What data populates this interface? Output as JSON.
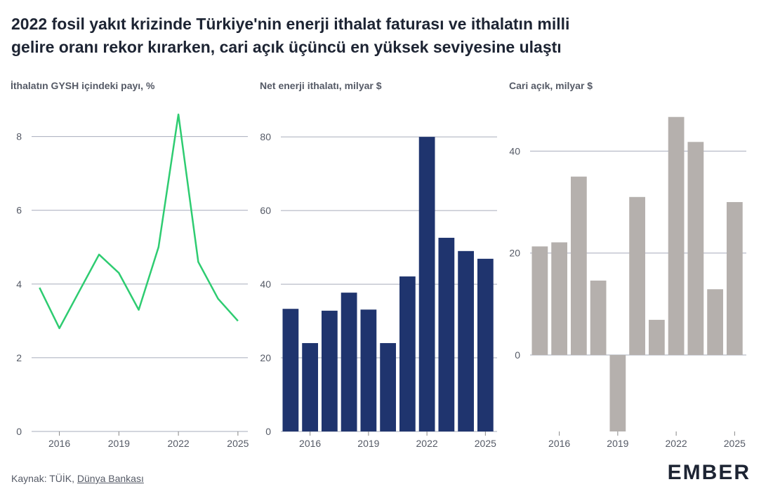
{
  "title": [
    "2022 fosil yakıt krizinde Türkiye'nin enerji ithalat faturası ve ithalatın milli",
    "gelire oranı rekor kırarken, cari açık üçüncü en yüksek seviyesine ulaştı"
  ],
  "source": {
    "prefix": "Kaynak: TÜİK,",
    "link": "Dünya Bankası"
  },
  "logo": "EMBER",
  "chart_data": [
    {
      "type": "line",
      "title": "İthalatın GYSH içindeki payı, %",
      "color": "#2ecc71",
      "x": [
        2015,
        2016,
        2017,
        2018,
        2019,
        2020,
        2021,
        2022,
        2023,
        2024,
        2025
      ],
      "values": [
        3.9,
        2.8,
        3.8,
        4.8,
        4.3,
        3.3,
        5.0,
        8.6,
        4.6,
        3.6,
        3.0
      ],
      "xlim": [
        2014.6,
        2025.5
      ],
      "ylim": [
        0,
        8.85
      ],
      "xticks": [
        2016,
        2019,
        2022,
        2025
      ],
      "yticks": [
        0,
        2,
        4,
        6,
        8
      ],
      "grid": true
    },
    {
      "type": "bar",
      "title": "Net enerji ithalatı, milyar $",
      "color": "#1f346e",
      "x": [
        2015,
        2016,
        2017,
        2018,
        2019,
        2020,
        2021,
        2022,
        2023,
        2024,
        2025
      ],
      "values": [
        33.3,
        24,
        32.8,
        37.7,
        33.1,
        24,
        42.1,
        80,
        52.6,
        49,
        46.9
      ],
      "xlim": [
        2014.5,
        2025.6
      ],
      "ylim": [
        0,
        88.6
      ],
      "xticks": [
        2016,
        2019,
        2022,
        2025
      ],
      "yticks": [
        0,
        20,
        40,
        60,
        80
      ],
      "grid": true
    },
    {
      "type": "bar",
      "title": "Cari açık, milyar $",
      "color": "#b5b0ad",
      "title_color": "#b9b4b0",
      "x": [
        2015,
        2016,
        2017,
        2018,
        2019,
        2020,
        2021,
        2022,
        2023,
        2024,
        2025
      ],
      "values": [
        21.3,
        22.1,
        35,
        14.6,
        -15,
        31,
        6.9,
        46.7,
        41.8,
        12.9,
        30
      ],
      "xlim": [
        2014.5,
        2025.6
      ],
      "ylim": [
        -15,
        49
      ],
      "xticks": [
        2016,
        2019,
        2022,
        2025
      ],
      "yticks": [
        0,
        20,
        40
      ],
      "grid": true
    }
  ]
}
